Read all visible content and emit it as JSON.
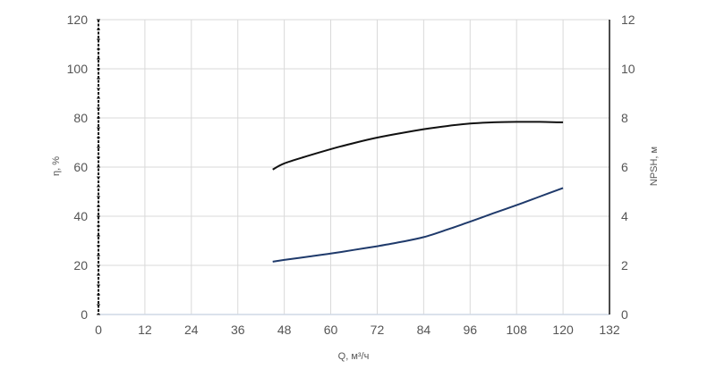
{
  "chart_data": {
    "type": "line",
    "xlabel": "Q, м³/ч",
    "ylabel_left": "η, %",
    "ylabel_right": "NPSH, м",
    "x_ticks": [
      0,
      12,
      24,
      36,
      48,
      60,
      72,
      84,
      96,
      108,
      120,
      132
    ],
    "xlim": [
      0,
      132
    ],
    "ylim_left": [
      0,
      120
    ],
    "ylim_right": [
      0,
      12
    ],
    "y_ticks_left": [
      0,
      20,
      40,
      60,
      80,
      100,
      120
    ],
    "y_ticks_right": [
      0,
      2,
      4,
      6,
      8,
      10,
      12
    ],
    "grid": true,
    "colors": {
      "efficiency": "#111111",
      "npsh": "#1f3a6b",
      "grid": "#d9d9d9"
    },
    "series": [
      {
        "axis": "left",
        "x": [
          45,
          48,
          54,
          60,
          66,
          72,
          78,
          84,
          90,
          96,
          102,
          108,
          114,
          120
        ],
        "y": [
          59,
          61.5,
          64.5,
          67.3,
          69.8,
          72,
          73.8,
          75.4,
          76.7,
          77.7,
          78.2,
          78.4,
          78.4,
          78.2
        ]
      },
      {
        "axis": "right",
        "x": [
          45,
          48,
          54,
          60,
          66,
          72,
          78,
          84,
          90,
          96,
          102,
          108,
          114,
          120
        ],
        "y": [
          2.15,
          2.22,
          2.35,
          2.48,
          2.63,
          2.78,
          2.95,
          3.15,
          3.45,
          3.78,
          4.12,
          4.45,
          4.8,
          5.15
        ]
      }
    ]
  }
}
